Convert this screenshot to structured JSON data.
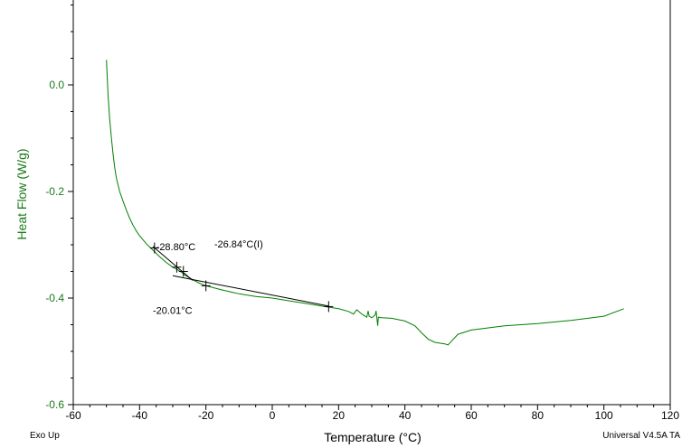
{
  "chart_data": {
    "type": "line",
    "xlabel": "Temperature (°C)",
    "ylabel": "Heat Flow (W/g)",
    "xlim": [
      -60,
      120
    ],
    "ylim": [
      -0.6,
      0.15
    ],
    "xticks": [
      -60,
      -40,
      -20,
      0,
      20,
      40,
      60,
      80,
      100,
      120
    ],
    "xtick_labels": [
      "-60",
      "-40",
      "-20",
      "0",
      "20",
      "40",
      "60",
      "80",
      "100",
      "120"
    ],
    "yticks": [
      0.0,
      -0.2,
      -0.4,
      -0.6
    ],
    "ytick_labels": [
      "0.0",
      "-0.2",
      "-0.4",
      "-0.6"
    ],
    "grid": false,
    "colors": {
      "curve": "#008000",
      "ylabel": "#1a7a1a",
      "ytick": "#1a7a1a",
      "annotation": "#000000"
    },
    "series": [
      {
        "x": [
          -50,
          -49.8,
          -49.5,
          -49,
          -48.5,
          -48,
          -47.5,
          -47,
          -46,
          -45,
          -44,
          -43,
          -42,
          -41,
          -40,
          -38,
          -36,
          -34,
          -32,
          -30,
          -28.8,
          -27,
          -26.8,
          -25,
          -22,
          -20,
          -15,
          -10,
          -5,
          0,
          5,
          10,
          15,
          20,
          23,
          24.5,
          25.5,
          27,
          28.5,
          28.9,
          29.2,
          30,
          31,
          31.3,
          31.8,
          32,
          33,
          36,
          40,
          43,
          45,
          47,
          49,
          50,
          52,
          53,
          54,
          56,
          60,
          70,
          80,
          90,
          100,
          106
        ],
        "y": [
          0.047,
          0.02,
          -0.02,
          -0.065,
          -0.1,
          -0.13,
          -0.155,
          -0.175,
          -0.2,
          -0.218,
          -0.235,
          -0.25,
          -0.263,
          -0.274,
          -0.283,
          -0.298,
          -0.31,
          -0.322,
          -0.333,
          -0.342,
          -0.346,
          -0.353,
          -0.355,
          -0.362,
          -0.372,
          -0.377,
          -0.385,
          -0.392,
          -0.397,
          -0.4,
          -0.405,
          -0.41,
          -0.415,
          -0.42,
          -0.425,
          -0.43,
          -0.422,
          -0.43,
          -0.436,
          -0.424,
          -0.434,
          -0.437,
          -0.432,
          -0.424,
          -0.452,
          -0.436,
          -0.437,
          -0.438,
          -0.443,
          -0.452,
          -0.465,
          -0.477,
          -0.483,
          -0.484,
          -0.486,
          -0.488,
          -0.481,
          -0.468,
          -0.46,
          -0.452,
          -0.448,
          -0.442,
          -0.434,
          -0.42
        ]
      }
    ],
    "baselines": [
      {
        "x": [
          -36,
          -24
        ],
        "y": [
          -0.303,
          -0.367
        ]
      },
      {
        "x": [
          -30,
          17
        ],
        "y": [
          -0.358,
          -0.415
        ]
      }
    ],
    "markers": [
      {
        "x": -35.5,
        "y": -0.306
      },
      {
        "x": -28.8,
        "y": -0.342
      },
      {
        "x": -26.8,
        "y": -0.35
      },
      {
        "x": -20.0,
        "y": -0.377
      },
      {
        "x": 17.0,
        "y": -0.416
      }
    ],
    "annotations": [
      {
        "text": "-28.80°C",
        "x": -35,
        "y": -0.31
      },
      {
        "text": "-26.84°C(I)",
        "x": -17.5,
        "y": -0.305
      },
      {
        "text": "-20.01°C",
        "x": -36,
        "y": -0.43
      }
    ]
  },
  "footer": {
    "left": "Exo Up",
    "right": "Universal V4.5A TA"
  }
}
